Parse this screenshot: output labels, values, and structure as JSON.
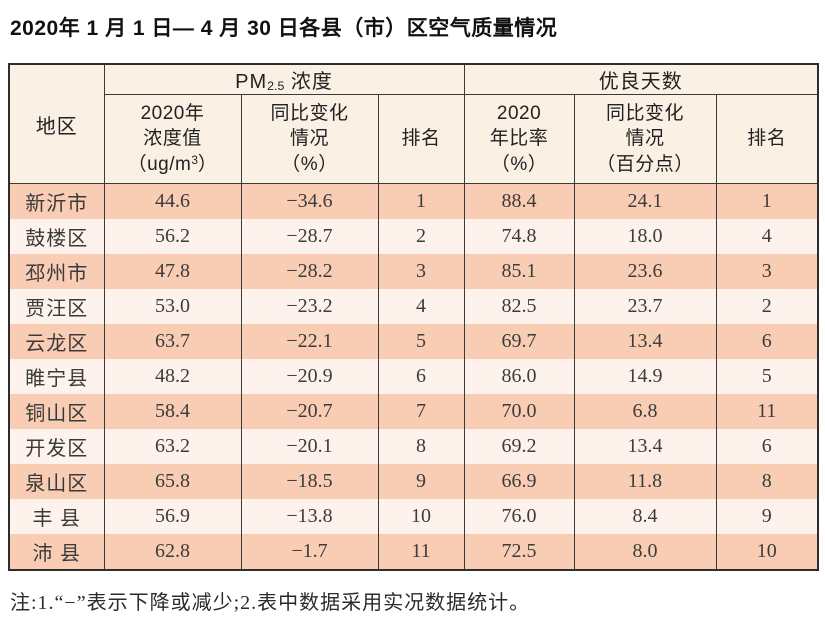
{
  "page_title": "2020年 1 月 1 日— 4 月 30 日各县（市）区空气质量情况",
  "colors": {
    "row_stripe_salmon": "#f9ccb4",
    "row_stripe_light": "#fdf3ec",
    "header_background": "#faf0e3",
    "border": "#2d2d2d",
    "background": "#ffffff"
  },
  "table": {
    "header": {
      "region": "地区",
      "pm25_group": {
        "prefix": "PM",
        "sub": "2.5",
        "suffix": " 浓度"
      },
      "good_days_group": "优良天数",
      "col_concentration": "2020年\n浓度值",
      "col_concentration_unit": {
        "prefix": "（ug/m",
        "sup": "3",
        "suffix": "）"
      },
      "col_change_percent": "同比变化\n情况\n（%）",
      "col_rank_pm25": "排名",
      "col_ratio": "2020\n年比率\n（%）",
      "col_change_points": "同比变化\n情况\n（百分点）",
      "col_rank_days": "排名"
    },
    "rows": [
      {
        "region": "新沂市",
        "conc": "44.6",
        "change": "−34.6",
        "rank1": "1",
        "ratio": "88.4",
        "pts": "24.1",
        "rank2": "1"
      },
      {
        "region": "鼓楼区",
        "conc": "56.2",
        "change": "−28.7",
        "rank1": "2",
        "ratio": "74.8",
        "pts": "18.0",
        "rank2": "4"
      },
      {
        "region": "邳州市",
        "conc": "47.8",
        "change": "−28.2",
        "rank1": "3",
        "ratio": "85.1",
        "pts": "23.6",
        "rank2": "3"
      },
      {
        "region": "贾汪区",
        "conc": "53.0",
        "change": "−23.2",
        "rank1": "4",
        "ratio": "82.5",
        "pts": "23.7",
        "rank2": "2"
      },
      {
        "region": "云龙区",
        "conc": "63.7",
        "change": "−22.1",
        "rank1": "5",
        "ratio": "69.7",
        "pts": "13.4",
        "rank2": "6"
      },
      {
        "region": "睢宁县",
        "conc": "48.2",
        "change": "−20.9",
        "rank1": "6",
        "ratio": "86.0",
        "pts": "14.9",
        "rank2": "5"
      },
      {
        "region": "铜山区",
        "conc": "58.4",
        "change": "−20.7",
        "rank1": "7",
        "ratio": "70.0",
        "pts": "6.8",
        "rank2": "11"
      },
      {
        "region": "开发区",
        "conc": "63.2",
        "change": "−20.1",
        "rank1": "8",
        "ratio": "69.2",
        "pts": "13.4",
        "rank2": "6"
      },
      {
        "region": "泉山区",
        "conc": "65.8",
        "change": "−18.5",
        "rank1": "9",
        "ratio": "66.9",
        "pts": "11.8",
        "rank2": "8"
      },
      {
        "region": "丰 县",
        "conc": "56.9",
        "change": "−13.8",
        "rank1": "10",
        "ratio": "76.0",
        "pts": "8.4",
        "rank2": "9"
      },
      {
        "region": "沛 县",
        "conc": "62.8",
        "change": "−1.7",
        "rank1": "11",
        "ratio": "72.5",
        "pts": "8.0",
        "rank2": "10"
      }
    ]
  },
  "footnote": "注:1.“−”表示下降或减少;2.表中数据采用实况数据统计。"
}
